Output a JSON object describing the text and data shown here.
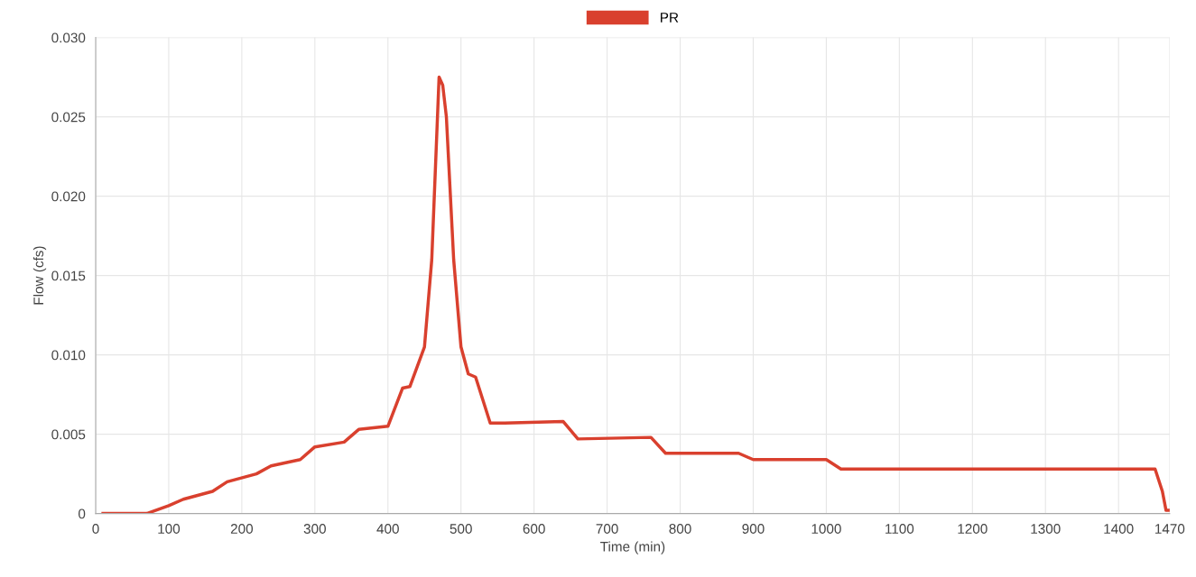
{
  "chart_data": {
    "type": "line",
    "xlabel": "Time (min)",
    "ylabel": "Flow (cfs)",
    "x": [
      10,
      70,
      100,
      120,
      160,
      180,
      220,
      240,
      280,
      300,
      340,
      360,
      400,
      420,
      430,
      450,
      460,
      470,
      475,
      480,
      490,
      500,
      510,
      520,
      540,
      560,
      640,
      660,
      760,
      780,
      880,
      900,
      1000,
      1020,
      1450,
      1460,
      1465,
      1470
    ],
    "series": [
      {
        "name": "PR",
        "color": "#d9402e",
        "values": [
          0,
          0,
          0.0005,
          0.0009,
          0.0014,
          0.002,
          0.0025,
          0.003,
          0.0034,
          0.0042,
          0.0045,
          0.0053,
          0.0055,
          0.0079,
          0.008,
          0.0105,
          0.016,
          0.0275,
          0.027,
          0.025,
          0.016,
          0.0105,
          0.0088,
          0.0086,
          0.0057,
          0.0057,
          0.0058,
          0.0047,
          0.0048,
          0.0038,
          0.0038,
          0.0034,
          0.0034,
          0.0028,
          0.0028,
          0.0014,
          0.0002,
          0.0002
        ]
      }
    ],
    "xlim": [
      0,
      1470
    ],
    "xticks": [
      0,
      100,
      200,
      300,
      400,
      500,
      600,
      700,
      800,
      900,
      1000,
      1100,
      1200,
      1300,
      1400,
      1470
    ],
    "ylim": [
      0,
      0.03
    ],
    "yticks": [
      0,
      {
        "value": 0.005,
        "label": "0.005"
      },
      {
        "value": 0.01,
        "label": "0.010"
      },
      {
        "value": 0.015,
        "label": "0.015"
      },
      {
        "value": 0.02,
        "label": "0.020"
      },
      {
        "value": 0.025,
        "label": "0.025"
      },
      {
        "value": 0.03,
        "label": "0.030"
      }
    ],
    "grid": true,
    "legend": "top",
    "marker": "none",
    "line_style": "solid"
  }
}
